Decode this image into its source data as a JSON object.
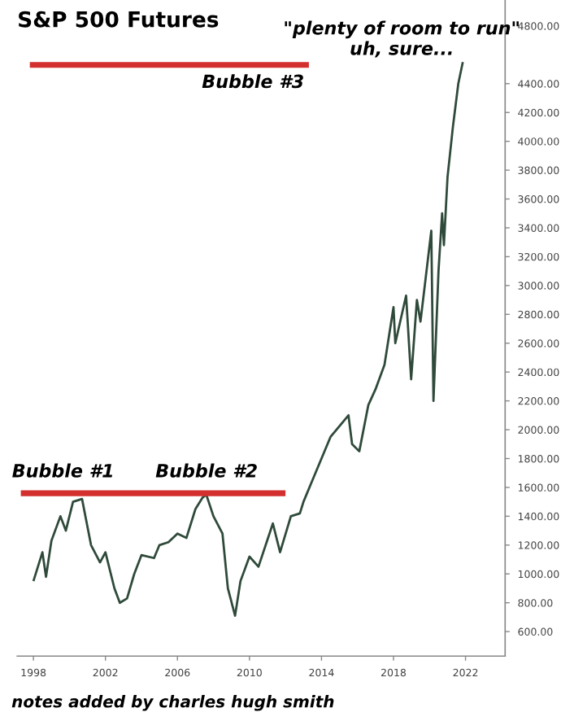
{
  "chart_data": {
    "type": "line",
    "title": "S&P 500 Futures",
    "annotations": [
      "Bubble #1",
      "Bubble #2",
      "Bubble #3",
      "\"plenty of room to run\"\nuh, sure...",
      "notes added by charles hugh smith"
    ],
    "xlim": [
      1997.1,
      2024.2
    ],
    "ylim": [
      430,
      4980
    ],
    "xticks": [
      1998,
      2002,
      2006,
      2010,
      2014,
      2018,
      2022
    ],
    "yticks": [
      {
        "value": 600,
        "label": "600.00"
      },
      {
        "value": 800,
        "label": "800.00"
      },
      {
        "value": 1000,
        "label": "1000.00"
      },
      {
        "value": 1200,
        "label": "1200.00"
      },
      {
        "value": 1400,
        "label": "1400.00"
      },
      {
        "value": 1600,
        "label": "1600.00"
      },
      {
        "value": 1800,
        "label": "1800.00"
      },
      {
        "value": 2000,
        "label": "2000.00"
      },
      {
        "value": 2200,
        "label": "2200.00"
      },
      {
        "value": 2400,
        "label": "2400.00"
      },
      {
        "value": 2600,
        "label": "2600.00"
      },
      {
        "value": 2800,
        "label": "2800.00"
      },
      {
        "value": 3000,
        "label": "3000.00"
      },
      {
        "value": 3200,
        "label": "3200.00"
      },
      {
        "value": 3400,
        "label": "3400.00"
      },
      {
        "value": 3600,
        "label": "3600.00"
      },
      {
        "value": 3800,
        "label": "3800.00"
      },
      {
        "value": 4000,
        "label": "4000.00"
      },
      {
        "value": 4200,
        "label": "4200.00"
      },
      {
        "value": 4400,
        "label": "4400.00"
      },
      {
        "value": 4800,
        "label": "4800.00"
      }
    ],
    "grid": false,
    "series": [
      {
        "color": "#2f4a3a",
        "x": [
          1998.0,
          1998.5,
          1998.7,
          1999.0,
          1999.5,
          1999.8,
          2000.2,
          2000.7,
          2001.2,
          2001.7,
          2002.0,
          2002.5,
          2002.8,
          2003.2,
          2003.6,
          2004.0,
          2004.7,
          2005.0,
          2005.5,
          2006.0,
          2006.5,
          2007.0,
          2007.4,
          2007.6,
          2008.0,
          2008.5,
          2008.8,
          2009.2,
          2009.5,
          2010.0,
          2010.5,
          2011.3,
          2011.7,
          2012.3,
          2012.8,
          2013.0,
          2013.5,
          2014.0,
          2014.5,
          2015.5,
          2015.7,
          2016.1,
          2016.6,
          2017.0,
          2017.5,
          2018.0,
          2018.1,
          2018.7,
          2018.98,
          2019.3,
          2019.5,
          2020.1,
          2020.22,
          2020.5,
          2020.7,
          2020.8,
          2021.0,
          2021.3,
          2021.6,
          2021.85
        ],
        "values": [
          950,
          1150,
          980,
          1230,
          1400,
          1300,
          1500,
          1520,
          1200,
          1080,
          1150,
          900,
          800,
          830,
          1000,
          1130,
          1110,
          1200,
          1220,
          1280,
          1250,
          1450,
          1530,
          1550,
          1400,
          1280,
          900,
          710,
          950,
          1120,
          1050,
          1350,
          1150,
          1400,
          1420,
          1500,
          1650,
          1800,
          1950,
          2100,
          1900,
          1850,
          2170,
          2280,
          2450,
          2850,
          2600,
          2930,
          2350,
          2900,
          2750,
          3380,
          2200,
          3100,
          3500,
          3280,
          3750,
          4100,
          4400,
          4550
        ]
      },
      {
        "type": "line",
        "color": "#d32f2f",
        "x": [
          1997.3,
          2012.0
        ],
        "values": [
          1560,
          1560
        ]
      },
      {
        "type": "line",
        "color": "#d32f2f",
        "x": [
          1997.8,
          2013.3
        ],
        "values": [
          4530,
          4530
        ]
      }
    ]
  }
}
